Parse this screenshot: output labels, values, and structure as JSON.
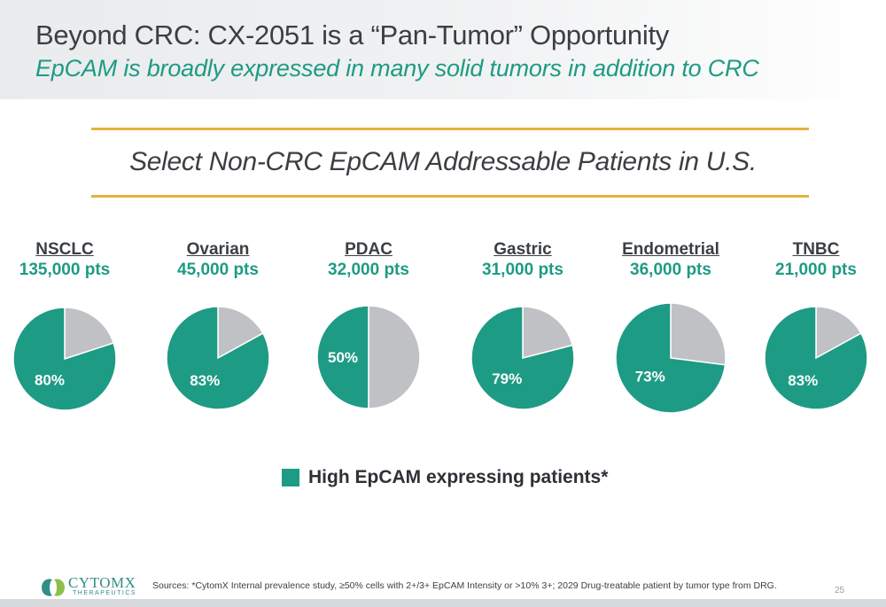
{
  "header": {
    "title": "Beyond CRC: CX-2051 is a “Pan-Tumor” Opportunity",
    "subtitle": "EpCAM is broadly expressed in many solid tumors in addition to CRC"
  },
  "section_title": "Select Non-CRC EpCAM Addressable Patients in U.S.",
  "colors": {
    "accent": "#1e9b84",
    "grey_slice": "#bfc1c4",
    "rule": "#e4b23c"
  },
  "chart_data": {
    "type": "pie",
    "title": "Select Non-CRC EpCAM Addressable Patients in U.S.",
    "legend": "High EpCAM expressing patients*",
    "legend_placement": "bottom-center",
    "pies": [
      {
        "name": "NSCLC",
        "count_label": "135,000 pts",
        "high_pct": 80,
        "label": "80%"
      },
      {
        "name": "Ovarian",
        "count_label": "45,000 pts",
        "high_pct": 83,
        "label": "83%"
      },
      {
        "name": "PDAC",
        "count_label": "32,000 pts",
        "high_pct": 50,
        "label": "50%"
      },
      {
        "name": "Gastric",
        "count_label": "31,000 pts",
        "high_pct": 79,
        "label": "79%"
      },
      {
        "name": "Endometrial",
        "count_label": "36,000 pts",
        "high_pct": 73,
        "label": "73%"
      },
      {
        "name": "TNBC",
        "count_label": "21,000 pts",
        "high_pct": 83,
        "label": "83%"
      }
    ]
  },
  "footer": {
    "logo_text": "CYTOMX",
    "logo_sub": "THERAPEUTICS",
    "sources": "Sources: *CytomX Internal prevalence study, ≥50% cells with 2+/3+ EpCAM Intensity or >10% 3+; 2029 Drug-treatable patient by tumor type from DRG.",
    "page_number": "25"
  }
}
